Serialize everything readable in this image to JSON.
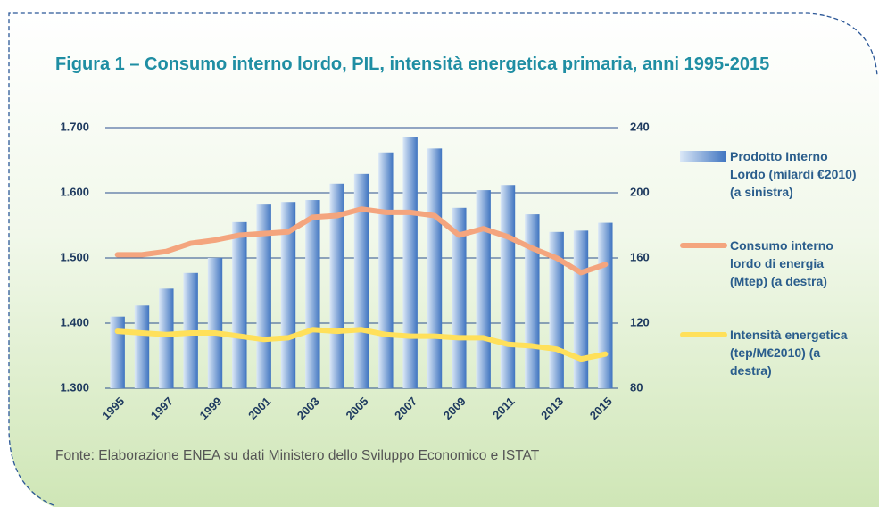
{
  "chart_data": {
    "type": "bar",
    "title": "Figura 1 – Consumo interno lordo, PIL, intensità energetica primaria, anni 1995-2015",
    "source": "Fonte: Elaborazione ENEA su dati Ministero dello Sviluppo Economico e ISTAT",
    "categories": [
      "1995",
      null,
      "1997",
      null,
      "1999",
      null,
      "2001",
      null,
      "2003",
      null,
      "2005",
      null,
      "2007",
      null,
      "2009",
      null,
      "2011",
      null,
      "2013",
      null,
      "2015"
    ],
    "ylim": [
      1300,
      1700
    ],
    "yticks": [
      {
        "value": 1300,
        "label": "1.300"
      },
      {
        "value": 1400,
        "label": "1.400"
      },
      {
        "value": 1500,
        "label": "1.500"
      },
      {
        "value": 1600,
        "label": "1.600"
      },
      {
        "value": 1700,
        "label": "1.700"
      }
    ],
    "y2lim": [
      80,
      240
    ],
    "y2ticks": [
      80,
      120,
      160,
      200,
      240
    ],
    "grid": true,
    "series": [
      {
        "name": "Prodotto Interno Lordo (milardi €2010) (a sinistra)",
        "type": "bar",
        "color": "#3f74c0",
        "values": [
          1410,
          1427,
          1453,
          1477,
          1500,
          1555,
          1582,
          1586,
          1589,
          1614,
          1629,
          1662,
          1686,
          1668,
          1577,
          1604,
          1612,
          1567,
          1540,
          1542,
          1554
        ]
      },
      {
        "name": "Consumo interno lordo di energia (Mtep) (a destra)",
        "type": "line",
        "axis": "y2",
        "color": "#f4a57e",
        "values": [
          162,
          162,
          164,
          169,
          171,
          174,
          175,
          176,
          185,
          186,
          190,
          188,
          188,
          186,
          174,
          178,
          173,
          166,
          160,
          151,
          156
        ]
      },
      {
        "name": "Intensità energetica (tep/M€2010) (a destra)",
        "type": "line",
        "axis": "y2",
        "color": "#ffe05a",
        "values": [
          115,
          114,
          113,
          114,
          114,
          112,
          110,
          111,
          116,
          115,
          116,
          113,
          112,
          112,
          111,
          111,
          107,
          106,
          104,
          98,
          101
        ]
      }
    ]
  }
}
